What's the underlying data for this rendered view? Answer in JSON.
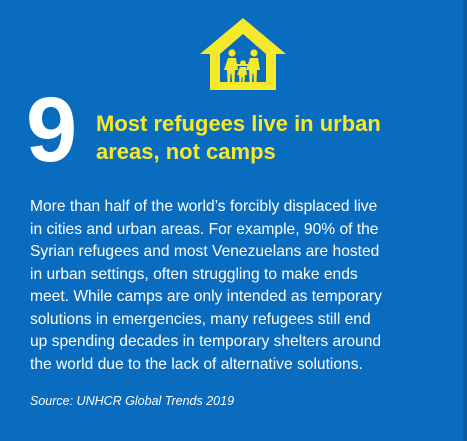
{
  "card": {
    "number": "9",
    "headline_lines": [
      "Most refugees live in urban",
      "areas, not camps"
    ],
    "body_lines": [
      "More than half of the world’s forcibly displaced live",
      "in cities and urban areas. For example, 90% of the",
      "Syrian refugees and most Venezuelans are hosted",
      "in urban settings, often struggling to make ends",
      "meet. While camps are only intended as temporary",
      "solutions in emergencies, many refugees still end",
      "up spending decades in temporary shelters around",
      "the world due to the lack of alternative solutions."
    ],
    "source": "Source: UNHCR Global Trends 2019",
    "icon": "house-with-family-icon"
  },
  "colors": {
    "background": "#0a6cbf",
    "accent": "#f6e82a",
    "text": "#ffffff"
  }
}
